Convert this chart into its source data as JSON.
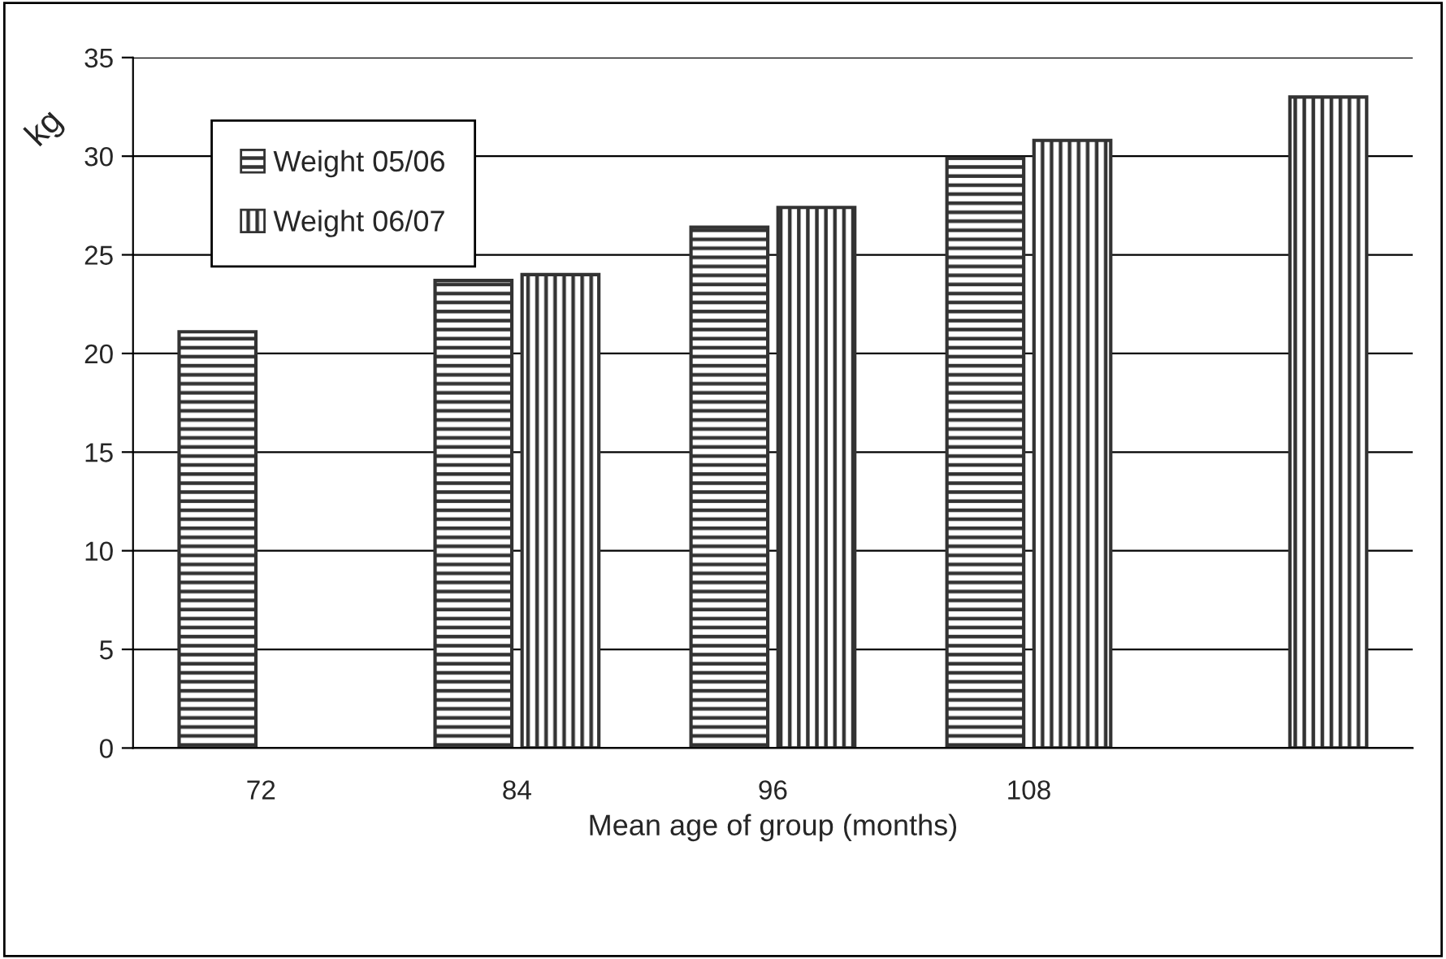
{
  "chart_data": {
    "type": "bar",
    "xlabel": "Mean age of group (months)",
    "ylabel": "kg",
    "categories": [
      "72",
      "84",
      "96",
      "108",
      null
    ],
    "series": [
      {
        "name": "Weight 05/06",
        "color": "#333333",
        "values": [
          21.1,
          23.7,
          26.4,
          29.9,
          null
        ]
      },
      {
        "name": "Weight 06/07",
        "color": "#333333",
        "values": [
          null,
          24.0,
          27.4,
          30.8,
          33.0
        ]
      }
    ],
    "ylim": [
      0,
      35
    ],
    "yticks": [
      0,
      5,
      10,
      15,
      20,
      25,
      30,
      35
    ],
    "grid": "y",
    "legend": "top left"
  }
}
